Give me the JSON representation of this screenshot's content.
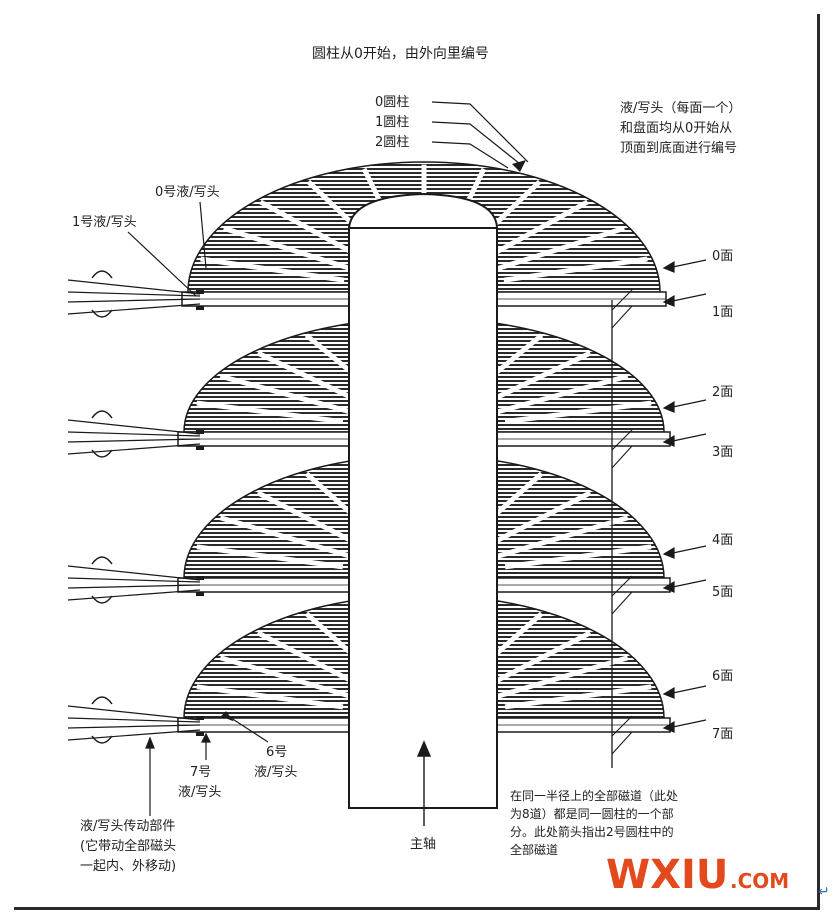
{
  "title": "圆柱从0开始，由外向里编号",
  "cylinder_labels": [
    "0圆柱",
    "1圆柱",
    "2圆柱"
  ],
  "head_note": [
    "液/写头（每面一个）",
    "和盘面均从0开始从",
    "顶面到底面进行编号"
  ],
  "top_heads": [
    "0号液/写头",
    "1号液/写头"
  ],
  "surfaces": [
    "0面",
    "1面",
    "2面",
    "3面",
    "4面",
    "5面",
    "6面",
    "7面"
  ],
  "bottom_heads": {
    "head7": [
      "7号",
      "液/写头"
    ],
    "head6": [
      "6号",
      "液/写头"
    ]
  },
  "actuator_note": [
    "液/写头传动部件",
    "(它带动全部磁头",
    "一起内、外移动)"
  ],
  "spindle": "主轴",
  "track_note": [
    "在同一半径上的全部磁道（此处",
    "为8道）都是同一圆柱的一个部",
    "分。此处箭头指出2号圆柱中的",
    "全部磁道"
  ],
  "watermark": {
    "main": "WXIU",
    "suffix": ".COM"
  },
  "colors": {
    "ink": "#1a1a1a",
    "watermark": "#e24a1d"
  }
}
